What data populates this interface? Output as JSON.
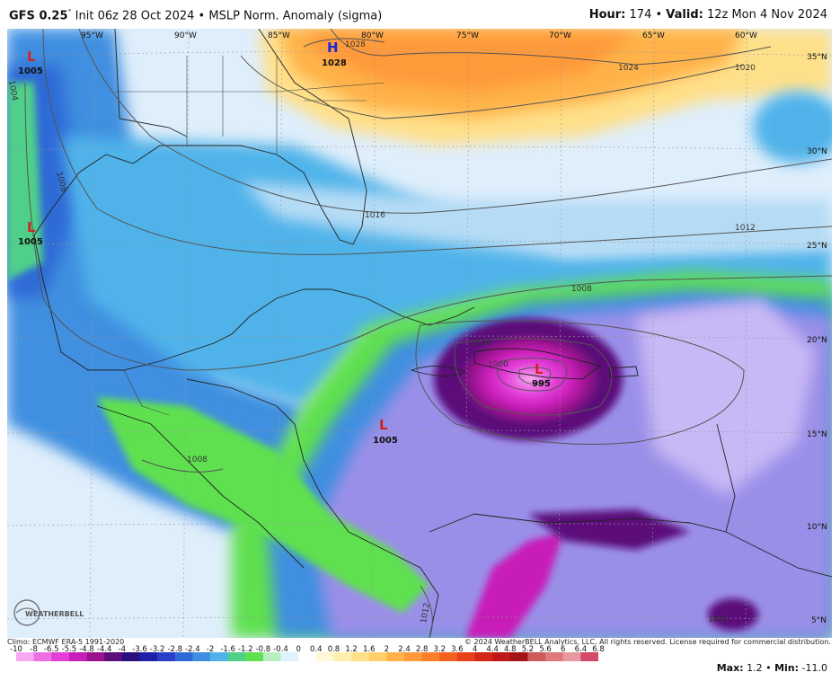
{
  "header": {
    "model": "GFS 0.25",
    "degree": "°",
    "init": " Init 06z 28 Oct 2024 • MSLP Norm. Anomaly (sigma)",
    "hour_label": "Hour:",
    "hour_value": " 174 • ",
    "valid_label": "Valid:",
    "valid_value": " 12z Mon 4 Nov 2024"
  },
  "map": {
    "lon_labels": [
      "95°W",
      "90°W",
      "85°W",
      "80°W",
      "75°W",
      "70°W",
      "65°W",
      "60°W"
    ],
    "lat_labels": [
      "35°N",
      "30°N",
      "25°N",
      "20°N",
      "15°N",
      "10°N",
      "5°N"
    ],
    "isobars": [
      "1028",
      "1024",
      "1020",
      "1016",
      "1012",
      "1008",
      "1004",
      "1000",
      "1008",
      "1004",
      "1012",
      "1012",
      "1012",
      "1008",
      "1008"
    ],
    "pressure_centers": [
      {
        "symbol": "L",
        "value": "1005",
        "color": "#d42020"
      },
      {
        "symbol": "L",
        "value": "1005",
        "color": "#d42020"
      },
      {
        "symbol": "H",
        "value": "1028",
        "color": "#1a2ad6"
      },
      {
        "symbol": "L",
        "value": "995",
        "color": "#d42020"
      },
      {
        "symbol": "L",
        "value": "1005",
        "color": "#d42020"
      }
    ],
    "logo_text": "WEATHERBELL"
  },
  "footer": {
    "climo": "Climo: ECMWF ERA-5 1991-2020",
    "copyright": "© 2024 WeatherBELL Analytics, LLC. All rights reserved. License required for commercial distribution.",
    "max_label": "Max:",
    "max_value": " 1.2 • ",
    "min_label": "Min:",
    "min_value": " -11.0"
  },
  "colorbar": {
    "ticks": [
      "-10",
      "-8",
      "-6.5",
      "-5.5",
      "-4.8",
      "-4.4",
      "-4",
      "-3.6",
      "-3.2",
      "-2.8",
      "-2.4",
      "-2",
      "-1.6",
      "-1.2",
      "-0.8",
      "-0.4",
      "0",
      "0.4",
      "0.8",
      "1.2",
      "1.6",
      "2",
      "2.4",
      "2.8",
      "3.2",
      "3.6",
      "4",
      "4.4",
      "4.8",
      "5.2",
      "5.6",
      "6",
      "6.4",
      "6.8"
    ],
    "colors": [
      "#f7a8f0",
      "#ee6ee6",
      "#e33fd9",
      "#c81fb8",
      "#9a138e",
      "#5c0f7a",
      "#2a0e7a",
      "#1f1fa8",
      "#2a3fc8",
      "#2f6ad6",
      "#3f8fe0",
      "#4fb3ea",
      "#4fd08a",
      "#5fe04f",
      "#b6f0c0",
      "#dff2ff",
      "#ffffff",
      "#fff7d6",
      "#ffefae",
      "#ffe08a",
      "#ffcf6b",
      "#ffb24a",
      "#ff9a3a",
      "#ff7f2a",
      "#f5601e",
      "#e8401a",
      "#d42518",
      "#c01818",
      "#a31414",
      "#cf5a5a",
      "#e07a7a",
      "#e89aa0",
      "#d44a6a"
    ]
  }
}
